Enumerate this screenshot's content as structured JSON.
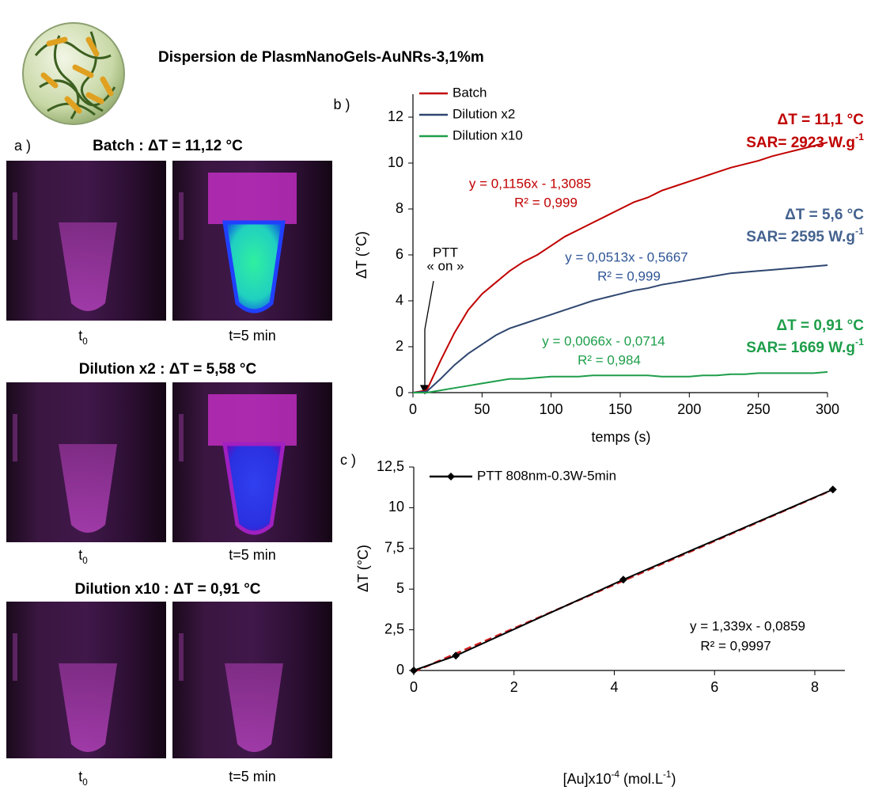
{
  "header": {
    "title": "Dispersion de PlasmNanoGels-AuNRs-3,1%m"
  },
  "panel_a": {
    "label": "a )",
    "rows": [
      {
        "title": "Batch :  ΔT = 11,12 °C",
        "caption_left": [
          "t",
          "0"
        ],
        "caption_right": "t=5 min"
      },
      {
        "title": "Dilution x2 : ΔT = 5,58 °C",
        "caption_left": [
          "t",
          "0"
        ],
        "caption_right": "t=5 min"
      },
      {
        "title": "Dilution x10 : ΔT = 0,91 °C",
        "caption_left": [
          "t",
          "0"
        ],
        "caption_right": "t=5 min"
      }
    ]
  },
  "chart_data": [
    {
      "type": "line",
      "panel_label": "b )",
      "xlabel": "temps (s)",
      "ylabel": "ΔT (°C)",
      "x": [
        0,
        10,
        20,
        30,
        40,
        50,
        60,
        70,
        80,
        90,
        100,
        110,
        120,
        130,
        140,
        150,
        160,
        170,
        180,
        190,
        200,
        210,
        220,
        230,
        240,
        250,
        260,
        270,
        280,
        290,
        300
      ],
      "series": [
        {
          "name": "Batch",
          "color": "#c00000",
          "values": [
            0,
            0.1,
            1.4,
            2.6,
            3.6,
            4.3,
            4.8,
            5.3,
            5.7,
            6.0,
            6.4,
            6.8,
            7.1,
            7.4,
            7.7,
            8.0,
            8.3,
            8.5,
            8.8,
            9.0,
            9.2,
            9.4,
            9.6,
            9.8,
            9.95,
            10.1,
            10.3,
            10.45,
            10.6,
            10.75,
            10.9
          ]
        },
        {
          "name": "Dilution x2",
          "color": "#2f4670",
          "values": [
            0,
            0.05,
            0.6,
            1.2,
            1.7,
            2.1,
            2.5,
            2.8,
            3.0,
            3.2,
            3.4,
            3.6,
            3.8,
            4.0,
            4.15,
            4.3,
            4.45,
            4.55,
            4.7,
            4.8,
            4.9,
            5.0,
            5.1,
            5.2,
            5.25,
            5.3,
            5.35,
            5.4,
            5.45,
            5.5,
            5.55
          ]
        },
        {
          "name": "Dilution x10",
          "color": "#1e9e4a",
          "values": [
            0,
            0,
            0.1,
            0.2,
            0.3,
            0.4,
            0.5,
            0.6,
            0.6,
            0.65,
            0.7,
            0.7,
            0.7,
            0.75,
            0.75,
            0.75,
            0.75,
            0.75,
            0.7,
            0.7,
            0.7,
            0.75,
            0.75,
            0.8,
            0.8,
            0.85,
            0.85,
            0.85,
            0.85,
            0.85,
            0.9
          ]
        }
      ],
      "xlim": [
        0,
        300
      ],
      "ylim": [
        0,
        13
      ],
      "xticks": [
        0,
        50,
        100,
        150,
        200,
        250,
        300
      ],
      "yticks": [
        0,
        2,
        4,
        6,
        8,
        10,
        12
      ],
      "legend": "upper left",
      "annotations": [
        {
          "text": "y = 0,1156x - 1,3085",
          "color": "#c00000"
        },
        {
          "text": "R² = 0,999",
          "color": "#c00000"
        },
        {
          "text": "y = 0,0513x - 0,5667",
          "color": "#2f5597"
        },
        {
          "text": "R² = 0,999",
          "color": "#2f5597"
        },
        {
          "text": "y = 0,0066x - 0,0714",
          "color": "#1e9e4a"
        },
        {
          "text": "R² = 0,984",
          "color": "#1e9e4a"
        },
        {
          "text": "PTT",
          "color": "#000000"
        },
        {
          "text": "« on »",
          "color": "#000000"
        }
      ],
      "callouts": [
        {
          "parts": [
            "ΔT = 11,1 °C"
          ],
          "color": "#c00000"
        },
        {
          "parts": [
            "SAR= 2923 W.g",
            "-1"
          ],
          "color": "#c00000"
        },
        {
          "parts": [
            "ΔT = 5,6 °C"
          ],
          "color": "#44628f"
        },
        {
          "parts": [
            "SAR= 2595 W.g",
            "-1"
          ],
          "color": "#44628f"
        },
        {
          "parts": [
            "ΔT = 0,91 °C"
          ],
          "color": "#1e9e4a"
        },
        {
          "parts": [
            "SAR= 1669 W.g",
            "-1"
          ],
          "color": "#1e9e4a"
        }
      ]
    },
    {
      "type": "line",
      "panel_label": "c )",
      "ylabel": "ΔT (°C)",
      "xlabel_parts": [
        "[Au]x10",
        "-4",
        " (mol.L",
        "-1",
        ")"
      ],
      "x": [
        0,
        0.84,
        4.18,
        8.36
      ],
      "series": [
        {
          "name": "PTT 808nm-0.3W-5min",
          "color": "#000000",
          "marker": "diamond",
          "values": [
            0,
            0.91,
            5.58,
            11.12
          ]
        }
      ],
      "trendline": {
        "color": "#d02020",
        "x": [
          0,
          8.36
        ],
        "values": [
          -0.0859,
          11.108
        ]
      },
      "xlim": [
        0,
        8.6
      ],
      "ylim": [
        0,
        12.5
      ],
      "xticks": [
        0,
        2,
        4,
        6,
        8
      ],
      "yticks": [
        0,
        {
          "value": 2.5,
          "label": "2,5"
        },
        5,
        {
          "value": 7.5,
          "label": "7,5"
        },
        10,
        {
          "value": 12.5,
          "label": "12,5"
        }
      ],
      "legend": "upper left",
      "annotations": [
        {
          "text": "y = 1,339x - 0,0859",
          "color": "#000000"
        },
        {
          "text": "R² = 0,9997",
          "color": "#000000"
        }
      ]
    }
  ]
}
